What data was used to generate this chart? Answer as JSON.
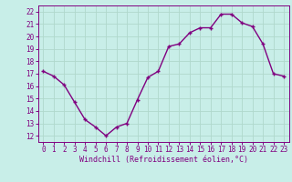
{
  "x": [
    0,
    1,
    2,
    3,
    4,
    5,
    6,
    7,
    8,
    9,
    10,
    11,
    12,
    13,
    14,
    15,
    16,
    17,
    18,
    19,
    20,
    21,
    22,
    23
  ],
  "y": [
    17.2,
    16.8,
    16.1,
    14.7,
    13.3,
    12.7,
    12.0,
    12.7,
    13.0,
    14.9,
    16.7,
    17.2,
    19.2,
    19.4,
    20.3,
    20.7,
    20.7,
    21.8,
    21.8,
    21.1,
    20.8,
    19.4,
    17.0,
    16.8
  ],
  "line_color": "#800080",
  "marker_color": "#800080",
  "bg_color": "#c8eee8",
  "grid_color": "#b0d8cc",
  "xlabel": "Windchill (Refroidissement éolien,°C)",
  "xlabel_color": "#800080",
  "tick_color": "#800080",
  "xlim": [
    -0.5,
    23.5
  ],
  "ylim": [
    11.5,
    22.5
  ],
  "yticks": [
    12,
    13,
    14,
    15,
    16,
    17,
    18,
    19,
    20,
    21,
    22
  ],
  "xticks": [
    0,
    1,
    2,
    3,
    4,
    5,
    6,
    7,
    8,
    9,
    10,
    11,
    12,
    13,
    14,
    15,
    16,
    17,
    18,
    19,
    20,
    21,
    22,
    23
  ],
  "xtick_labels": [
    "0",
    "1",
    "2",
    "3",
    "4",
    "5",
    "6",
    "7",
    "8",
    "9",
    "10",
    "11",
    "12",
    "13",
    "14",
    "15",
    "16",
    "17",
    "18",
    "19",
    "20",
    "21",
    "22",
    "23"
  ],
  "marker_size": 2.5,
  "line_width": 1.0,
  "tick_fontsize": 5.5,
  "xlabel_fontsize": 6.0
}
